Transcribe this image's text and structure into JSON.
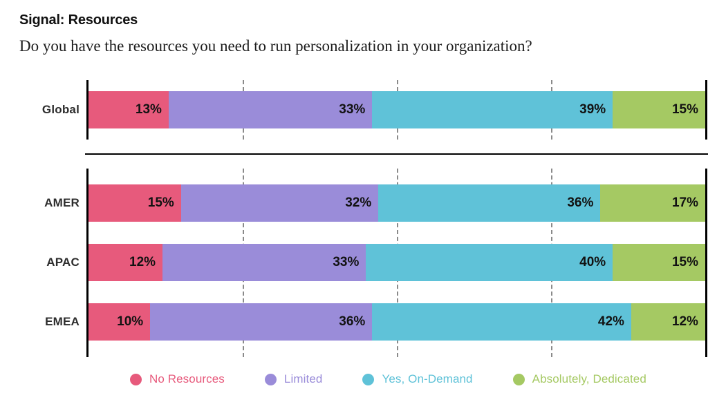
{
  "header": {
    "kicker": "Signal: Resources",
    "question": "Do you have the resources you need to run personalization in your organization?"
  },
  "chart_data": {
    "type": "bar",
    "subtype": "horizontal-stacked",
    "title": "Signal: Resources",
    "question": "Do you have the resources you need to run personalization in your organization?",
    "unit": "%",
    "xlim": [
      0,
      100
    ],
    "gridlines": [
      25,
      50,
      75
    ],
    "grid_style": "dashed",
    "legend_position": "bottom",
    "series_names": [
      "No Resources",
      "Limited",
      "Yes, On-Demand",
      "Absolutely, Dedicated"
    ],
    "series_colors": [
      "#E75A7C",
      "#9A8CD9",
      "#5FC2D8",
      "#A5C963"
    ],
    "groups": [
      {
        "name": "global-summary",
        "rows": [
          {
            "label": "Global",
            "values": [
              13,
              33,
              39,
              15
            ]
          }
        ]
      },
      {
        "name": "regions",
        "rows": [
          {
            "label": "AMER",
            "values": [
              15,
              32,
              36,
              17
            ]
          },
          {
            "label": "APAC",
            "values": [
              12,
              33,
              40,
              15
            ]
          },
          {
            "label": "EMEA",
            "values": [
              10,
              36,
              42,
              12
            ]
          }
        ]
      }
    ],
    "legend": [
      {
        "label": "No Resources",
        "color": "#E75A7C"
      },
      {
        "label": "Limited",
        "color": "#9A8CD9"
      },
      {
        "label": "Yes, On-Demand",
        "color": "#5FC2D8"
      },
      {
        "label": "Absolutely, Dedicated",
        "color": "#A5C963"
      }
    ]
  }
}
